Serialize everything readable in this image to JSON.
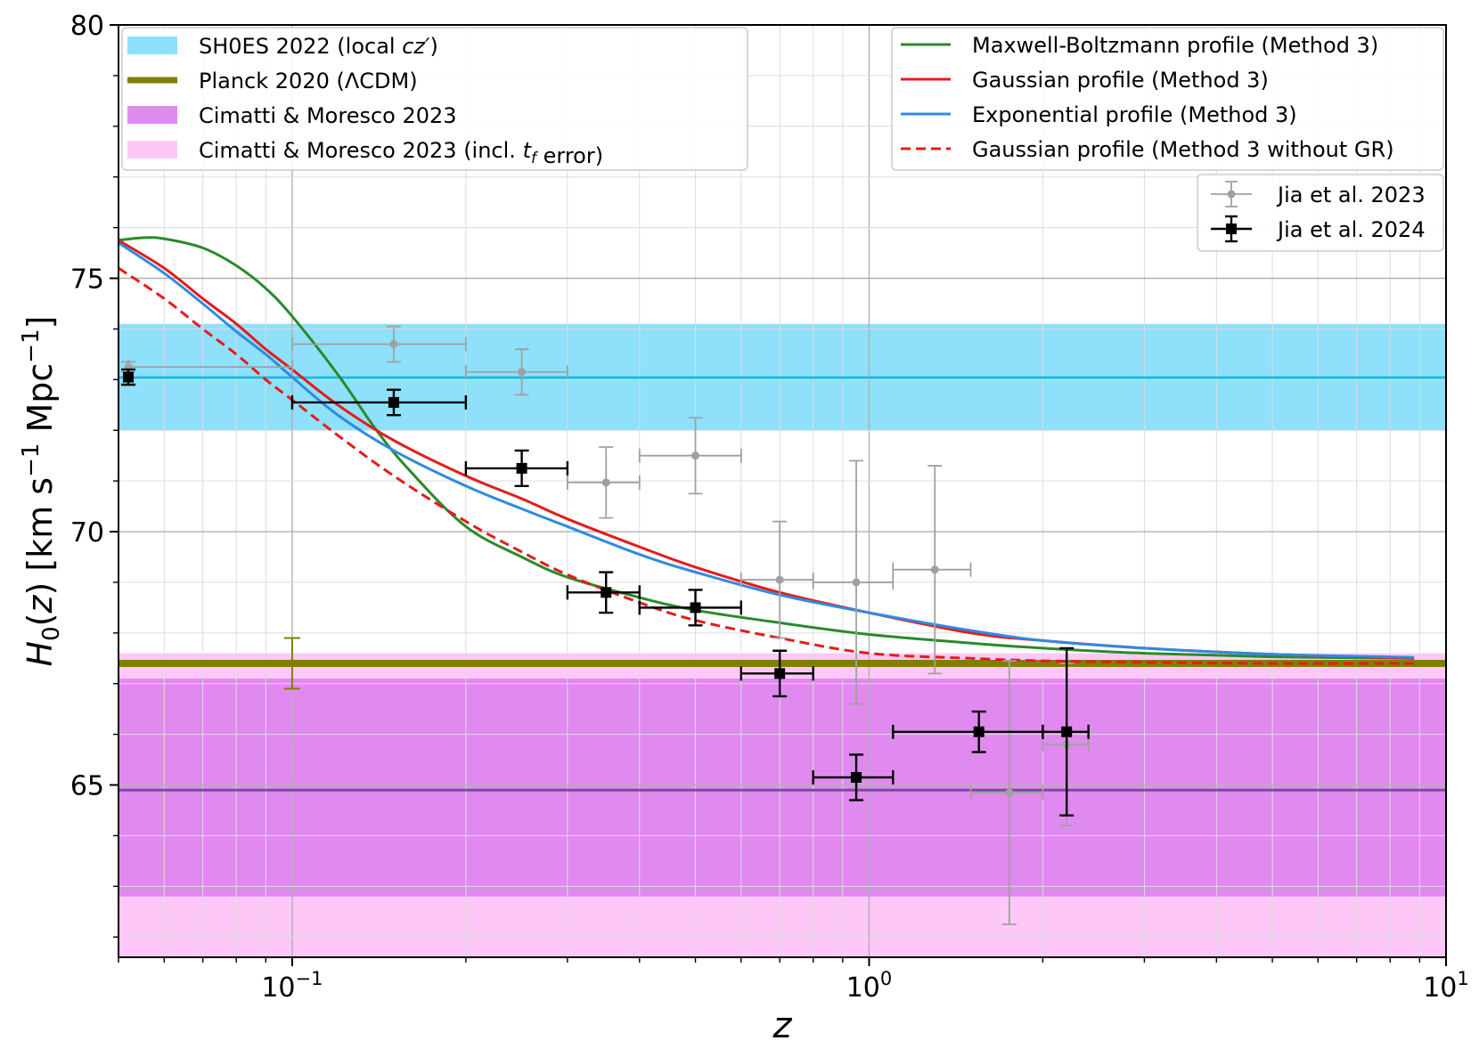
{
  "chart_data": {
    "type": "scatter",
    "xlabel": "z",
    "ylabel": "H₀(z) [km s⁻¹ Mpc⁻¹]",
    "xscale": "log",
    "xlim": [
      0.05,
      10
    ],
    "ylim": [
      61.6,
      80
    ],
    "x_ticks": [
      {
        "value": 0.1,
        "base": "10",
        "exp": "−1"
      },
      {
        "value": 1,
        "base": "10",
        "exp": "0"
      },
      {
        "value": 10,
        "base": "10",
        "exp": "1"
      }
    ],
    "y_ticks": [
      65,
      70,
      75,
      80
    ],
    "grid": true,
    "bands": [
      {
        "name": "SH0ES 2022 (local cz′)",
        "low": 72.0,
        "high": 74.1,
        "center": 73.04,
        "color": "#8fe0fa",
        "line_color": "#22b8ea"
      },
      {
        "name": "Cimatti & Moresco 2023 (incl. t_f error)",
        "low": 61.6,
        "high": 67.6,
        "color": "#fdc8f8"
      },
      {
        "name": "Cimatti & Moresco 2023",
        "low": 62.8,
        "high": 67.1,
        "center": 64.9,
        "color": "#e08af0",
        "line_color": "#7a4a9c"
      }
    ],
    "planck": {
      "name": "Planck 2020 (ΛCDM)",
      "value": 67.4,
      "err": 0.5,
      "color": "#808000",
      "marker_x": 0.1
    },
    "curves": [
      {
        "name": "Maxwell-Boltzmann profile (Method 3)",
        "color": "#2a8a2a",
        "dash": false,
        "points": [
          [
            0.05,
            75.75
          ],
          [
            0.055,
            75.8
          ],
          [
            0.06,
            75.78
          ],
          [
            0.07,
            75.6
          ],
          [
            0.08,
            75.25
          ],
          [
            0.09,
            74.8
          ],
          [
            0.1,
            74.25
          ],
          [
            0.12,
            73.1
          ],
          [
            0.14,
            72.0
          ],
          [
            0.16,
            71.2
          ],
          [
            0.2,
            70.1
          ],
          [
            0.25,
            69.5
          ],
          [
            0.3,
            69.1
          ],
          [
            0.4,
            68.7
          ],
          [
            0.5,
            68.45
          ],
          [
            0.7,
            68.2
          ],
          [
            1.0,
            67.97
          ],
          [
            1.5,
            67.8
          ],
          [
            2.0,
            67.7
          ],
          [
            3.0,
            67.6
          ],
          [
            5.0,
            67.53
          ],
          [
            8.8,
            67.5
          ]
        ]
      },
      {
        "name": "Gaussian profile (Method 3)",
        "color": "#e51b1b",
        "dash": false,
        "points": [
          [
            0.05,
            75.75
          ],
          [
            0.06,
            75.2
          ],
          [
            0.07,
            74.6
          ],
          [
            0.08,
            74.1
          ],
          [
            0.09,
            73.6
          ],
          [
            0.1,
            73.2
          ],
          [
            0.12,
            72.5
          ],
          [
            0.15,
            71.8
          ],
          [
            0.2,
            71.1
          ],
          [
            0.25,
            70.65
          ],
          [
            0.3,
            70.25
          ],
          [
            0.4,
            69.7
          ],
          [
            0.5,
            69.3
          ],
          [
            0.7,
            68.8
          ],
          [
            1.0,
            68.4
          ],
          [
            1.5,
            68.0
          ],
          [
            2.0,
            67.85
          ],
          [
            3.0,
            67.7
          ],
          [
            5.0,
            67.58
          ],
          [
            8.8,
            67.5
          ]
        ]
      },
      {
        "name": "Exponential profile (Method 3)",
        "color": "#2f8be0",
        "dash": false,
        "points": [
          [
            0.05,
            75.7
          ],
          [
            0.06,
            75.1
          ],
          [
            0.07,
            74.5
          ],
          [
            0.08,
            73.95
          ],
          [
            0.09,
            73.5
          ],
          [
            0.1,
            73.05
          ],
          [
            0.12,
            72.3
          ],
          [
            0.15,
            71.6
          ],
          [
            0.2,
            70.9
          ],
          [
            0.25,
            70.45
          ],
          [
            0.3,
            70.1
          ],
          [
            0.4,
            69.55
          ],
          [
            0.5,
            69.2
          ],
          [
            0.7,
            68.75
          ],
          [
            1.0,
            68.4
          ],
          [
            1.5,
            68.05
          ],
          [
            2.0,
            67.85
          ],
          [
            3.0,
            67.7
          ],
          [
            5.0,
            67.58
          ],
          [
            8.8,
            67.52
          ]
        ]
      },
      {
        "name": "Gaussian profile (Method 3 without GR)",
        "color": "#e51b1b",
        "dash": true,
        "points": [
          [
            0.05,
            75.2
          ],
          [
            0.06,
            74.6
          ],
          [
            0.07,
            74.0
          ],
          [
            0.08,
            73.5
          ],
          [
            0.09,
            73.0
          ],
          [
            0.1,
            72.6
          ],
          [
            0.12,
            71.9
          ],
          [
            0.15,
            71.1
          ],
          [
            0.2,
            70.2
          ],
          [
            0.25,
            69.6
          ],
          [
            0.3,
            69.15
          ],
          [
            0.4,
            68.6
          ],
          [
            0.5,
            68.25
          ],
          [
            0.7,
            67.9
          ],
          [
            1.0,
            67.6
          ],
          [
            1.5,
            67.5
          ],
          [
            2.0,
            67.45
          ],
          [
            3.0,
            67.42
          ],
          [
            5.0,
            67.4
          ],
          [
            8.8,
            67.4
          ]
        ]
      }
    ],
    "series": [
      {
        "name": "Jia et al. 2023",
        "color": "#a0a0a0",
        "marker": "circle",
        "points": [
          {
            "x": 0.052,
            "xlo": 0.052,
            "xhi": 0.1,
            "y": 73.25,
            "elo": 0.1,
            "ehi": 0.1
          },
          {
            "x": 0.15,
            "xlo": 0.1,
            "xhi": 0.2,
            "y": 73.7,
            "elo": 0.35,
            "ehi": 0.35
          },
          {
            "x": 0.25,
            "xlo": 0.2,
            "xhi": 0.3,
            "y": 73.15,
            "elo": 0.45,
            "ehi": 0.45
          },
          {
            "x": 0.35,
            "xlo": 0.3,
            "xhi": 0.4,
            "y": 70.97,
            "elo": 0.7,
            "ehi": 0.7
          },
          {
            "x": 0.5,
            "xlo": 0.4,
            "xhi": 0.6,
            "y": 71.5,
            "elo": 0.75,
            "ehi": 0.75
          },
          {
            "x": 0.7,
            "xlo": 0.6,
            "xhi": 0.8,
            "y": 69.05,
            "elo": 1.15,
            "ehi": 1.15
          },
          {
            "x": 0.95,
            "xlo": 0.8,
            "xhi": 1.1,
            "y": 69.0,
            "elo": 2.4,
            "ehi": 2.4
          },
          {
            "x": 1.3,
            "xlo": 1.1,
            "xhi": 1.5,
            "y": 69.25,
            "elo": 2.05,
            "ehi": 2.05
          },
          {
            "x": 1.75,
            "xlo": 1.5,
            "xhi": 2.0,
            "y": 64.85,
            "elo": 2.6,
            "ehi": 2.6
          },
          {
            "x": 2.2,
            "xlo": 2.0,
            "xhi": 2.4,
            "y": 65.8,
            "elo": 1.6,
            "ehi": 1.6
          }
        ]
      },
      {
        "name": "Jia et al. 2024",
        "color": "#000000",
        "marker": "square",
        "points": [
          {
            "x": 0.052,
            "xlo": 0.052,
            "xhi": 0.052,
            "y": 73.05,
            "elo": 0.15,
            "ehi": 0.15
          },
          {
            "x": 0.15,
            "xlo": 0.1,
            "xhi": 0.2,
            "y": 72.55,
            "elo": 0.25,
            "ehi": 0.25
          },
          {
            "x": 0.25,
            "xlo": 0.2,
            "xhi": 0.3,
            "y": 71.25,
            "elo": 0.35,
            "ehi": 0.35
          },
          {
            "x": 0.35,
            "xlo": 0.3,
            "xhi": 0.4,
            "y": 68.8,
            "elo": 0.4,
            "ehi": 0.4
          },
          {
            "x": 0.5,
            "xlo": 0.4,
            "xhi": 0.6,
            "y": 68.5,
            "elo": 0.35,
            "ehi": 0.35
          },
          {
            "x": 0.7,
            "xlo": 0.6,
            "xhi": 0.8,
            "y": 67.2,
            "elo": 0.45,
            "ehi": 0.45
          },
          {
            "x": 0.95,
            "xlo": 0.8,
            "xhi": 1.1,
            "y": 65.15,
            "elo": 0.45,
            "ehi": 0.45
          },
          {
            "x": 1.55,
            "xlo": 1.1,
            "xhi": 2.0,
            "y": 66.05,
            "elo": 0.4,
            "ehi": 0.4
          },
          {
            "x": 2.2,
            "xlo": 2.0,
            "xhi": 2.4,
            "y": 66.05,
            "elo": 1.65,
            "ehi": 1.65
          }
        ]
      }
    ],
    "legends": {
      "upper_left": [
        {
          "text": "SH0ES 2022 (local cz′)",
          "kind": "patch",
          "color": "#8fe0fa"
        },
        {
          "text": "Planck 2020 (ΛCDM)",
          "kind": "thickline",
          "color": "#808000"
        },
        {
          "text": "Cimatti & Moresco 2023",
          "kind": "patch",
          "color": "#e08af0"
        },
        {
          "text": "Cimatti & Moresco 2023 (incl. t_f error)",
          "kind": "patch",
          "color": "#fdc8f8"
        }
      ],
      "upper_right": [
        {
          "text": "Maxwell-Boltzmann profile (Method 3)",
          "kind": "line",
          "color": "#2a8a2a"
        },
        {
          "text": "Gaussian profile (Method 3)",
          "kind": "line",
          "color": "#e51b1b"
        },
        {
          "text": "Exponential profile (Method 3)",
          "kind": "line",
          "color": "#2f8be0"
        },
        {
          "text": "Gaussian profile (Method 3 without GR)",
          "kind": "dashed",
          "color": "#e51b1b"
        }
      ],
      "data": [
        {
          "text": "Jia et al. 2023",
          "kind": "errpoint",
          "color": "#a0a0a0",
          "marker": "circle"
        },
        {
          "text": "Jia et al. 2024",
          "kind": "errpoint",
          "color": "#000000",
          "marker": "square"
        }
      ]
    }
  }
}
